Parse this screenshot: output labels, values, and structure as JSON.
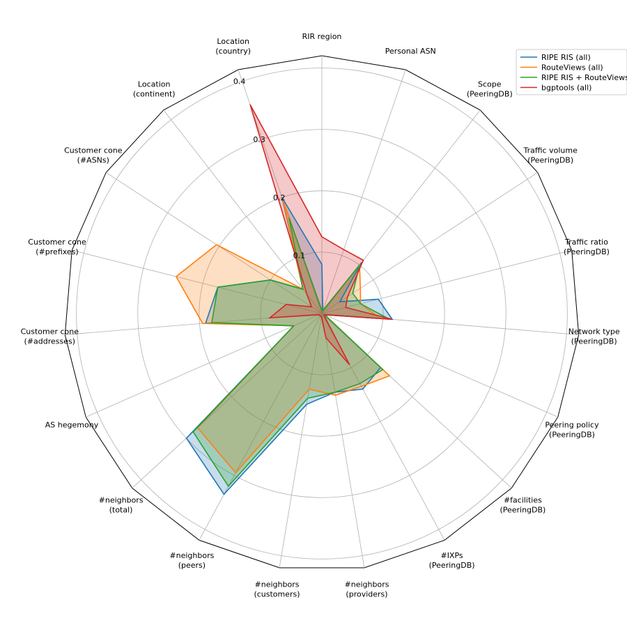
{
  "chart_data": {
    "type": "radar",
    "axes": [
      "RIR region",
      "Personal ASN",
      "Scope\n(PeeringDB)",
      "Traffic volume\n(PeeringDB)",
      "Traffic ratio\n(PeeringDB)",
      "Network type\n(PeeringDB)",
      "Peering policy\n(PeeringDB)",
      "#facilities\n(PeeringDB)",
      "#IXPs\n(PeeringDB)",
      "#neighbors\n(providers)",
      "#neighbors\n(customers)",
      "#neighbors\n(peers)",
      "#neighbors\n(total)",
      "AS hegemony",
      "Customer cone\n(#addresses)",
      "Customer cone\n(#prefixes)",
      "Customer cone\n(#ASNs)",
      "Location\n(continent)",
      "Location\n(country)"
    ],
    "rticks": [
      0.1,
      0.2,
      0.3,
      0.4
    ],
    "rlim": [
      0,
      0.42
    ],
    "tick_labels": [
      "0.1",
      "0.2",
      "0.3",
      "0.4"
    ],
    "series": [
      {
        "name": "RIPE RIS (all)",
        "color": "#1f77b4",
        "fill_opacity": 0.25,
        "values": [
          0.08,
          0.005,
          0.105,
          0.035,
          0.095,
          0.115,
          0.005,
          0.13,
          0.14,
          0.13,
          0.15,
          0.335,
          0.3,
          0.05,
          0.19,
          0.175,
          0.1,
          0.05,
          0.2
        ]
      },
      {
        "name": "RouteViews (all)",
        "color": "#ff7f0e",
        "fill_opacity": 0.25,
        "values": [
          0.005,
          0.005,
          0.1,
          0.075,
          0.065,
          0.095,
          0.005,
          0.15,
          0.135,
          0.135,
          0.125,
          0.295,
          0.275,
          0.05,
          0.195,
          0.245,
          0.205,
          0.05,
          0.195
        ]
      },
      {
        "name": "RIPE RIS + RouteViews (all)",
        "color": "#2ca02c",
        "fill_opacity": 0.25,
        "values": [
          0.005,
          0.005,
          0.1,
          0.06,
          0.065,
          0.11,
          0.005,
          0.135,
          0.13,
          0.13,
          0.14,
          0.32,
          0.285,
          0.05,
          0.18,
          0.175,
          0.1,
          0.05,
          0.165
        ]
      },
      {
        "name": "bgptools (all)",
        "color": "#d62728",
        "fill_opacity": 0.25,
        "values": [
          0.125,
          0.11,
          0.11,
          0.05,
          0.04,
          0.115,
          0.005,
          0.005,
          0.095,
          0.04,
          0.005,
          0.005,
          0.005,
          0.005,
          0.085,
          0.06,
          0.02,
          0.04,
          0.36
        ]
      }
    ],
    "legend_position": "top-right",
    "grid": true
  }
}
